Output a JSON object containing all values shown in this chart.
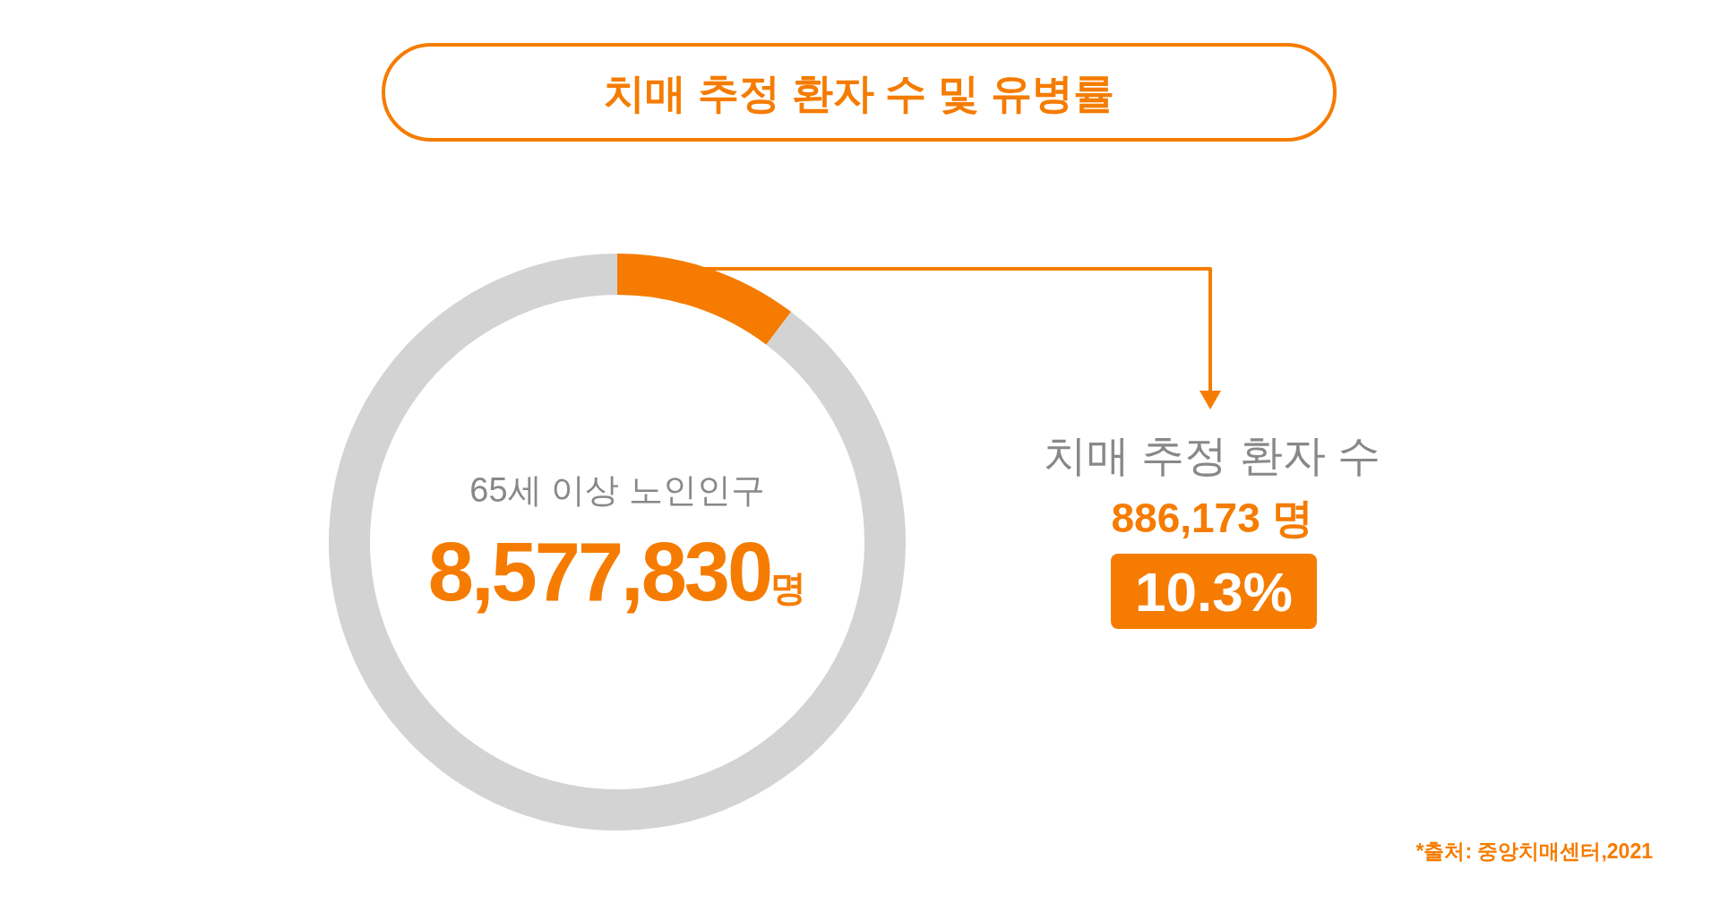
{
  "chart_data": {
    "type": "donut",
    "title": "치매 추정 환자 수 및 유병률",
    "categories": [
      "치매 추정 환자 수",
      null
    ],
    "values": [
      10.3,
      89.7
    ],
    "colors": [
      "#f57c00",
      "#d3d3d3"
    ],
    "legend": "right",
    "annotations": [
      "65세 이상 노인인구",
      "8,577,830명",
      "886,173 명",
      "*출처: 중앙치매센터,2021",
      "10.3%"
    ]
  }
}
